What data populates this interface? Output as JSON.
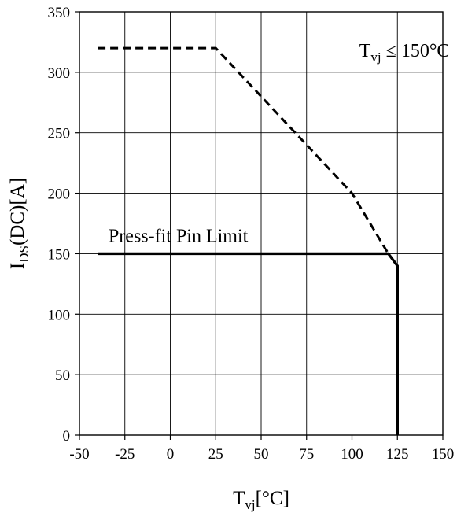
{
  "chart_data": {
    "type": "line",
    "xlim": [
      -50,
      150
    ],
    "ylim": [
      0,
      350
    ],
    "x_ticks": [
      -50,
      -25,
      0,
      25,
      50,
      75,
      100,
      125,
      150
    ],
    "y_ticks": [
      0,
      50,
      100,
      150,
      200,
      250,
      300,
      350
    ],
    "grid": true,
    "xlabel": {
      "main": "T",
      "sub": "vj",
      "rest": "[°C]"
    },
    "ylabel": {
      "main": "I",
      "sub": "DS",
      "rest": "(DC)[A]"
    },
    "series": [
      {
        "style": "dashed",
        "x": [
          -40,
          25,
          100,
          120
        ],
        "y": [
          320,
          320,
          200,
          150
        ]
      },
      {
        "style": "solid",
        "x": [
          -40,
          120,
          125,
          125
        ],
        "y": [
          150,
          150,
          140,
          0
        ]
      }
    ],
    "annotations": [
      {
        "id": "tvj-limit",
        "parts": [
          "T",
          "vj",
          " ≤ 150°C"
        ],
        "x": 104,
        "y": 318
      },
      {
        "id": "pin-limit",
        "text": "Press-fit Pin Limit",
        "x": -34,
        "y": 165
      }
    ]
  }
}
